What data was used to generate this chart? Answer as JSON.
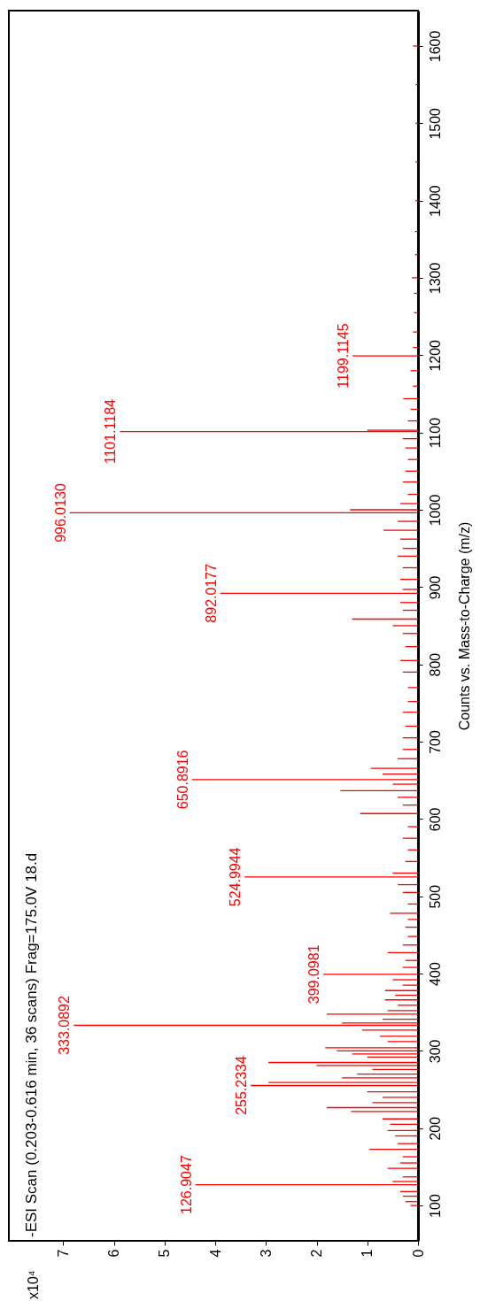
{
  "chart_data": {
    "type": "bar",
    "orientation": "horizontal",
    "title": "-ESI Scan (0.203-0.616 min, 36 scans) Frag=175.0V 18.d",
    "ylabel": "Counts vs. Mass-to-Charge (m/z)",
    "x": [
      100,
      105,
      112,
      118,
      126.9047,
      131,
      137,
      148,
      155,
      163,
      172.7,
      180,
      190,
      197,
      205,
      212,
      221.5,
      226.6,
      233,
      240,
      247,
      255.2334,
      259,
      265,
      270,
      276,
      281,
      285,
      292,
      296,
      300,
      304,
      312,
      319,
      327,
      333.0892,
      336,
      341,
      347.6,
      352,
      359,
      366,
      372,
      378,
      385,
      392,
      399.0981,
      408,
      417,
      427,
      437,
      448,
      460,
      470,
      478,
      490,
      505,
      515,
      524.9944,
      530,
      545,
      560,
      575,
      590,
      607,
      618,
      628,
      636.7,
      645,
      650.8916,
      658,
      665.6,
      678,
      690,
      705,
      720,
      738,
      752,
      770,
      790,
      805,
      823,
      840,
      850,
      858.6,
      870,
      880,
      892.0177,
      897,
      910,
      925,
      940,
      950,
      962,
      973.6,
      985,
      996.013,
      1000,
      1008,
      1020,
      1036,
      1050,
      1065,
      1080,
      1092,
      1101.1184,
      1103,
      1115,
      1130,
      1143.7,
      1160,
      1180,
      1199.1145,
      1210,
      1230,
      1255,
      1280,
      1300,
      1330,
      1360,
      1400,
      1450,
      1500,
      1550,
      1600
    ],
    "series": [
      {
        "color": "#ff0000",
        "values": [
          0.15,
          0.25,
          0.3,
          0.35,
          4.39,
          0.5,
          0.3,
          0.6,
          0.35,
          0.3,
          0.96,
          0.4,
          0.45,
          0.6,
          0.55,
          0.7,
          1.32,
          1.8,
          0.9,
          0.7,
          1.0,
          3.3,
          2.95,
          1.5,
          1.2,
          0.9,
          2.0,
          2.95,
          1.0,
          1.3,
          1.6,
          1.83,
          0.6,
          0.75,
          1.1,
          6.79,
          1.5,
          0.7,
          1.8,
          0.6,
          0.4,
          0.65,
          0.45,
          0.65,
          0.3,
          0.5,
          1.87,
          0.3,
          0.25,
          0.6,
          0.3,
          0.2,
          0.25,
          0.2,
          0.55,
          0.2,
          0.3,
          0.4,
          3.42,
          0.5,
          0.25,
          0.2,
          0.3,
          0.2,
          1.14,
          0.3,
          0.4,
          1.53,
          0.5,
          4.46,
          0.7,
          0.93,
          0.4,
          0.3,
          0.3,
          0.25,
          0.3,
          0.2,
          0.2,
          0.3,
          0.35,
          0.25,
          0.3,
          0.5,
          1.3,
          0.3,
          0.35,
          3.9,
          0.3,
          0.35,
          0.3,
          0.4,
          0.3,
          0.35,
          0.68,
          0.4,
          6.87,
          1.34,
          0.35,
          0.2,
          0.3,
          0.25,
          0.2,
          0.25,
          0.3,
          5.88,
          1.0,
          0.2,
          0.15,
          0.29,
          0.1,
          0.15,
          1.29,
          0.1,
          0.1,
          0.08,
          0.08,
          0.12,
          0.06,
          0.06,
          0.05,
          0.05,
          0.05,
          0.05,
          0.1
        ]
      }
    ],
    "xlim": [
      8.07,
      0
    ],
    "xticks": [
      0,
      1,
      2,
      3,
      4,
      5,
      6,
      7
    ],
    "ylim": [
      60,
      1640
    ],
    "yticks": [
      100,
      200,
      300,
      400,
      500,
      600,
      700,
      800,
      900,
      1000,
      1100,
      1200,
      1300,
      1400,
      1500,
      1600
    ],
    "annotations": [
      "x10⁴",
      {
        "text": "126.9047",
        "x": 4.39,
        "y": 126.9047
      },
      {
        "text": "255.2334",
        "x": 3.3,
        "y": 255.2334
      },
      {
        "text": "333.0892",
        "x": 6.79,
        "y": 333.0892
      },
      {
        "text": "399.0981",
        "x": 1.87,
        "y": 399.0981
      },
      {
        "text": "524.9944",
        "x": 3.42,
        "y": 524.9944
      },
      {
        "text": "650.8916",
        "x": 4.46,
        "y": 650.8916
      },
      {
        "text": "892.0177",
        "x": 3.9,
        "y": 892.0177
      },
      {
        "text": "996.0130",
        "x": 6.87,
        "y": 996.013
      },
      {
        "text": "1101.1184",
        "x": 5.88,
        "y": 1101.1184
      },
      {
        "text": "1199.1145",
        "x": 1.29,
        "y": 1199.1145
      }
    ]
  }
}
